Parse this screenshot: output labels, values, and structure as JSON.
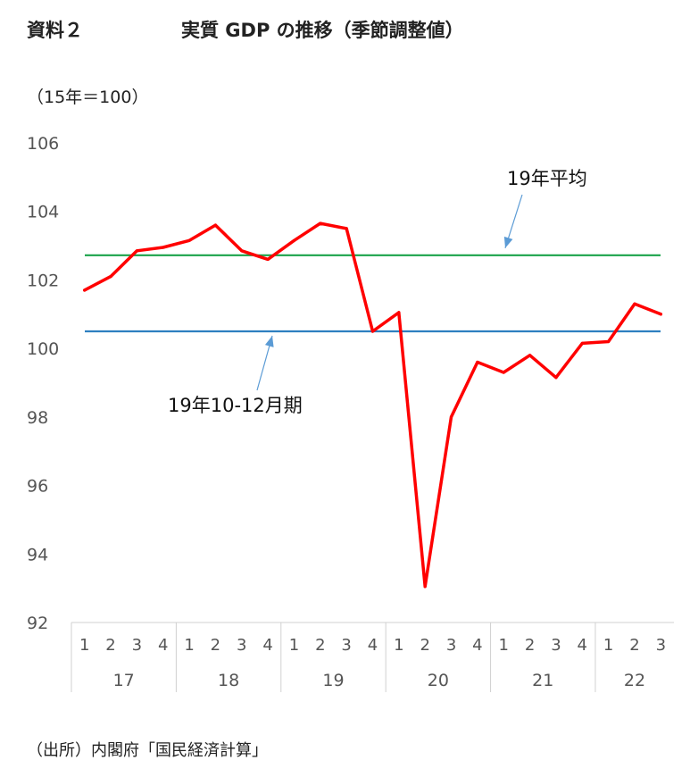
{
  "header": {
    "label": "資料２",
    "title": "実質 GDP の推移（季節調整値）"
  },
  "unit_note": "（15年＝100）",
  "source_note": "（出所）内閣府「国民経済計算」",
  "chart_data": {
    "type": "line",
    "ylim": [
      92,
      106
    ],
    "yticks": [
      92,
      94,
      96,
      98,
      100,
      102,
      104,
      106
    ],
    "grid": false,
    "x": [
      "1",
      "2",
      "3",
      "4",
      "1",
      "2",
      "3",
      "4",
      "1",
      "2",
      "3",
      "4",
      "1",
      "2",
      "3",
      "4",
      "1",
      "2",
      "3",
      "4",
      "1",
      "2",
      "3"
    ],
    "years": [
      {
        "label": "17",
        "quarters": 4
      },
      {
        "label": "18",
        "quarters": 4
      },
      {
        "label": "19",
        "quarters": 4
      },
      {
        "label": "20",
        "quarters": 4
      },
      {
        "label": "21",
        "quarters": 4
      },
      {
        "label": "22",
        "quarters": 3
      }
    ],
    "series": [
      {
        "color": "#ff0000",
        "values": [
          101.7,
          102.1,
          102.85,
          102.95,
          103.15,
          103.6,
          102.85,
          102.6,
          103.15,
          103.65,
          103.5,
          100.5,
          101.05,
          93.05,
          98.0,
          99.6,
          99.3,
          99.8,
          99.15,
          100.15,
          100.2,
          101.3,
          101.0
        ]
      }
    ],
    "reference_lines": [
      {
        "label": "19年平均",
        "value": 102.72,
        "color": "#1aa34a"
      },
      {
        "label": "19年10-12月期",
        "value": 100.5,
        "color": "#2e7fc0"
      }
    ]
  }
}
